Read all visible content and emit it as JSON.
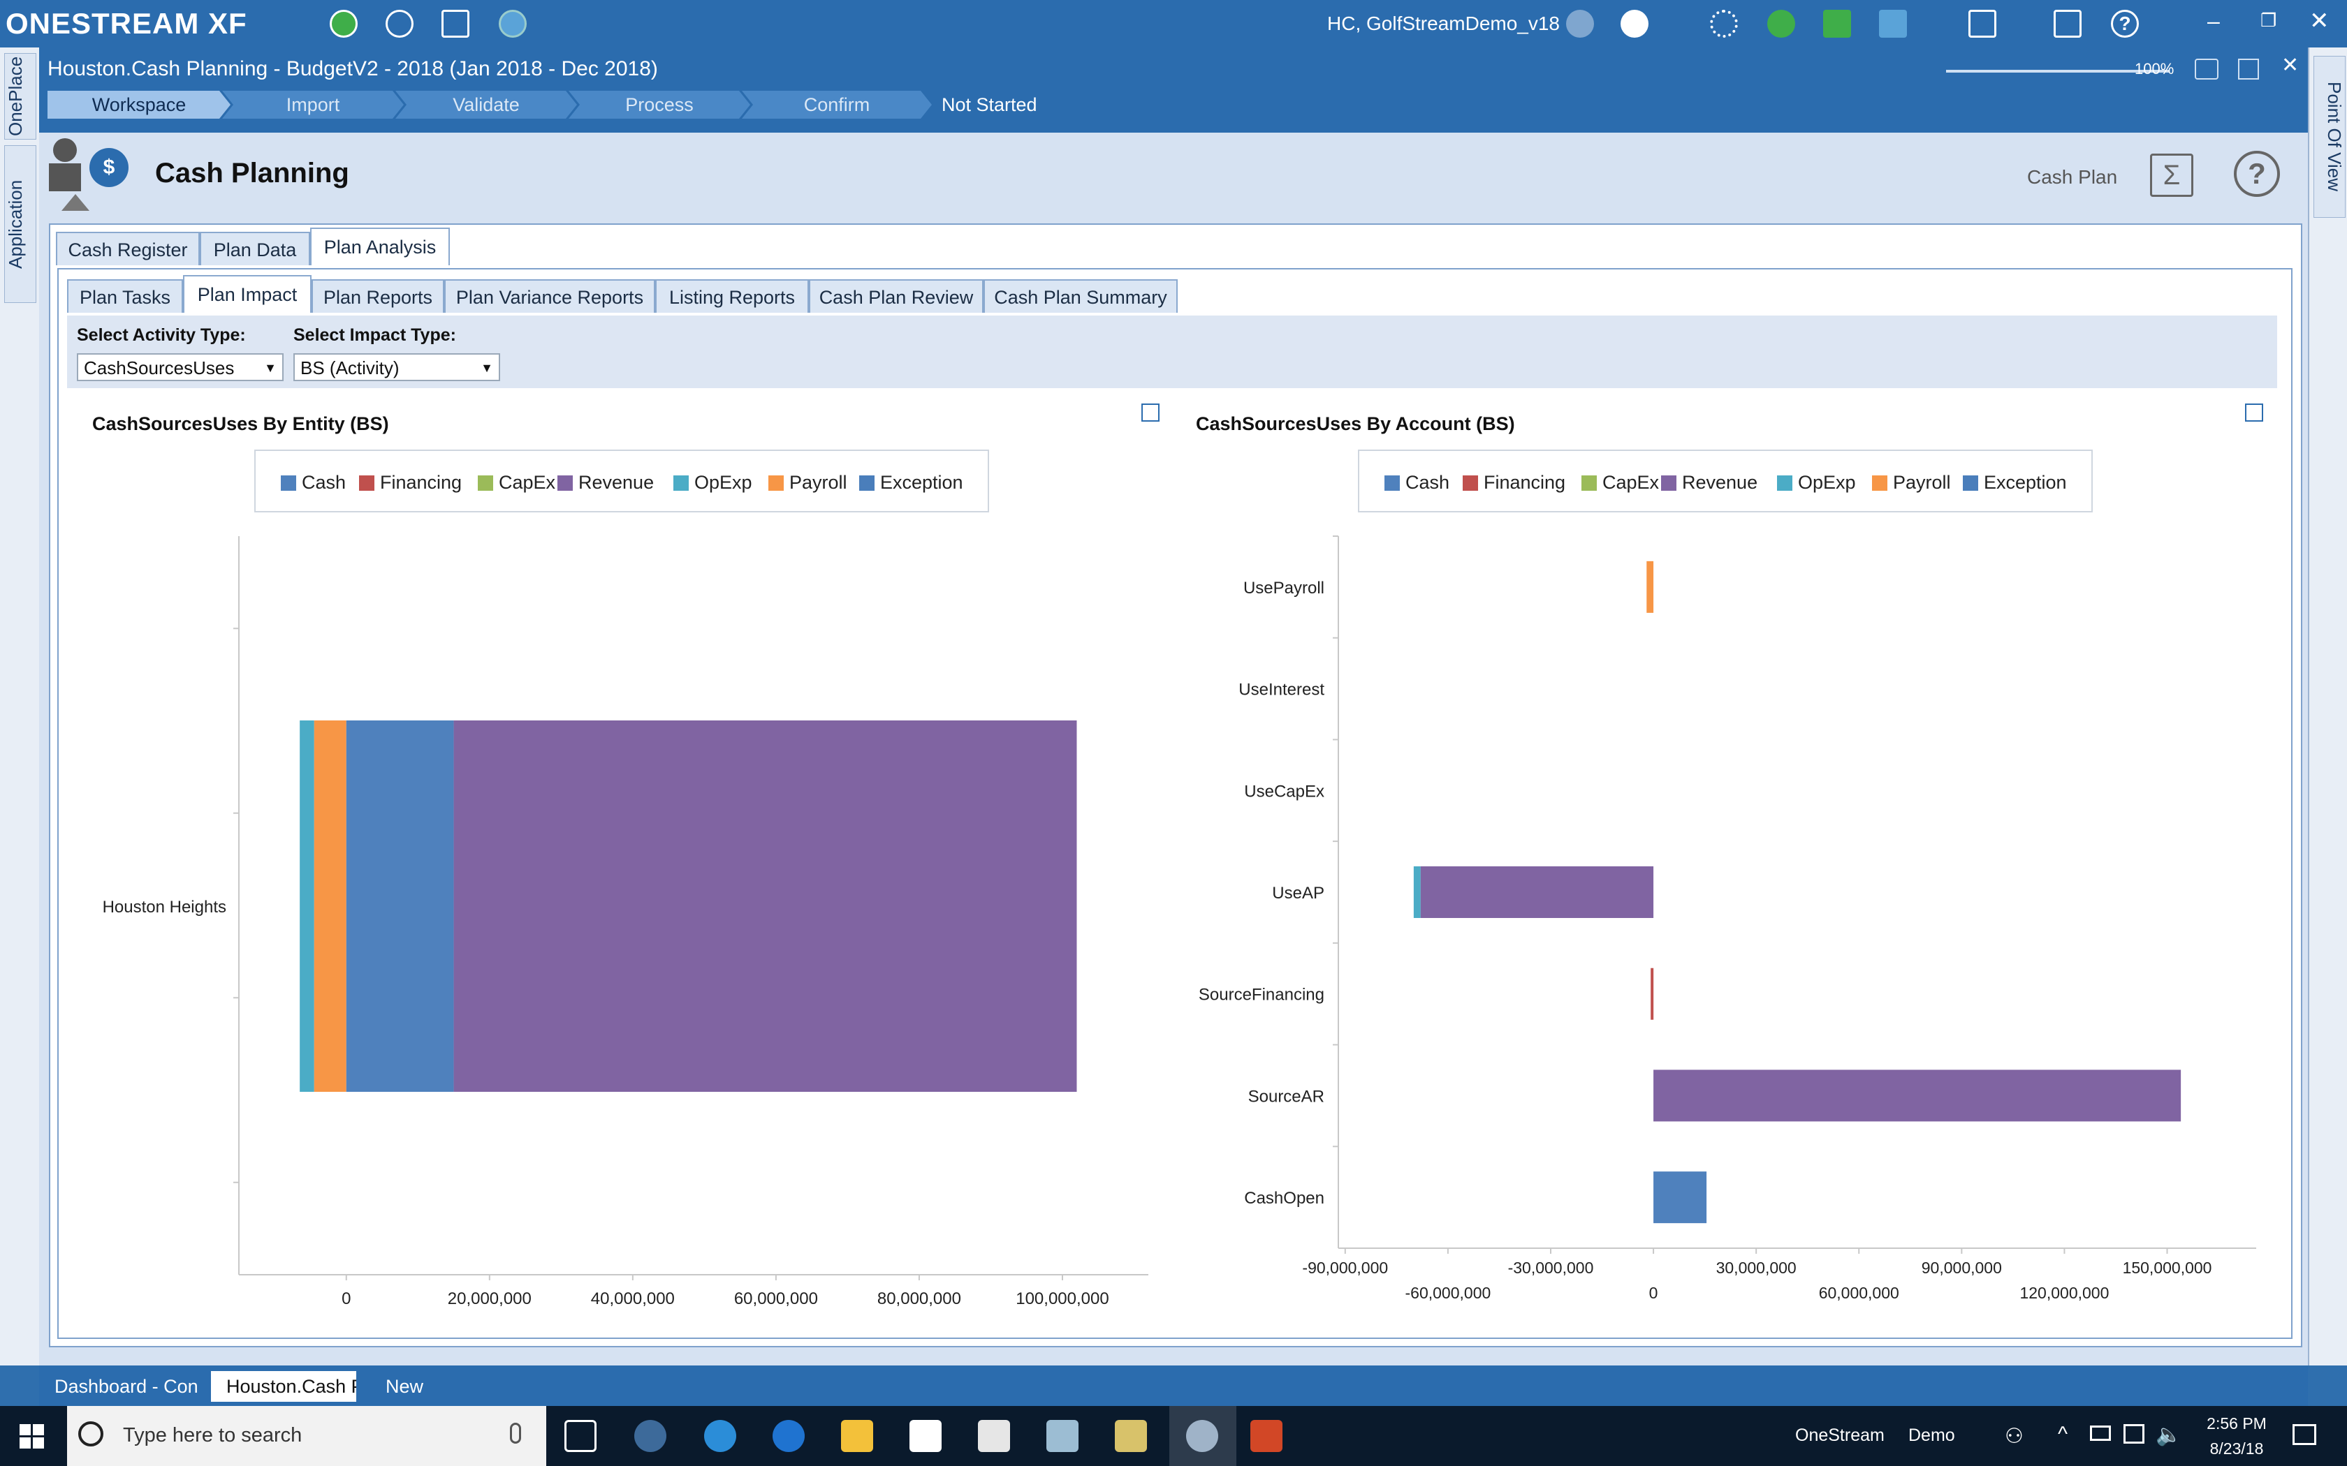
{
  "app": {
    "logo_text": "ONESTREAM XF",
    "user_app": "HC, GolfStreamDemo_v18"
  },
  "side_tabs": {
    "left": [
      "OnePlace",
      "Application"
    ],
    "right": "Point Of View"
  },
  "workspace": {
    "title": "Houston.Cash Planning  -  BudgetV2  -  2018 (Jan 2018 - Dec 2018)",
    "zoom": "100%",
    "steps": [
      "Workspace",
      "Import",
      "Validate",
      "Process",
      "Confirm"
    ],
    "status": "Not Started"
  },
  "dashboard": {
    "title": "Cash Planning",
    "cash_plan_label": "Cash Plan"
  },
  "tabs_level1": [
    "Cash Register",
    "Plan Data",
    "Plan Analysis"
  ],
  "tabs_level2": [
    "Plan Tasks",
    "Plan Impact",
    "Plan Reports",
    "Plan Variance Reports",
    "Listing Reports",
    "Cash Plan Review",
    "Cash Plan Summary"
  ],
  "selectors": {
    "activity_label": "Select Activity Type:",
    "activity_value": "CashSourcesUses",
    "impact_label": "Select Impact Type:",
    "impact_value": "BS (Activity)"
  },
  "legend_labels": [
    "Cash",
    "Financing",
    "CapEx",
    "Revenue",
    "OpExp",
    "Payroll",
    "Exception"
  ],
  "colors": {
    "Cash": "#4f81bd",
    "Financing": "#c0504d",
    "CapEx": "#9bbb59",
    "Revenue": "#8064a2",
    "OpExp": "#4bacc6",
    "Payroll": "#f79646",
    "Exception": "#4a7ebb"
  },
  "chart_data": [
    {
      "type": "bar",
      "orientation": "horizontal",
      "stacked": true,
      "title": "CashSourcesUses By Entity  (BS)",
      "categories": [
        "Houston Heights"
      ],
      "series": [
        {
          "name": "Payroll",
          "values": [
            -4500000
          ]
        },
        {
          "name": "OpExp",
          "values": [
            -2000000
          ]
        },
        {
          "name": "Cash",
          "values": [
            15000000
          ]
        },
        {
          "name": "Revenue",
          "values": [
            87000000
          ]
        }
      ],
      "x_ticks": [
        "0",
        "20,000,000",
        "40,000,000",
        "60,000,000",
        "80,000,000",
        "100,000,000"
      ],
      "xlim": [
        -15000000,
        112000000
      ],
      "legend_position": "top"
    },
    {
      "type": "bar",
      "orientation": "horizontal",
      "stacked": true,
      "title": "CashSourcesUses By Account  (BS)",
      "categories": [
        "UsePayroll",
        "UseInterest",
        "UseCapEx",
        "UseAP",
        "SourceFinancing",
        "SourceAR",
        "CashOpen"
      ],
      "series": [
        {
          "name": "Payroll",
          "values": [
            -2000000,
            0,
            0,
            0,
            0,
            0,
            0
          ]
        },
        {
          "name": "Financing",
          "values": [
            0,
            0,
            0,
            0,
            -800000,
            0,
            0
          ]
        },
        {
          "name": "Revenue",
          "values": [
            0,
            0,
            0,
            -68000000,
            0,
            154000000,
            0
          ]
        },
        {
          "name": "OpExp",
          "values": [
            0,
            0,
            0,
            -2000000,
            0,
            0,
            0
          ]
        },
        {
          "name": "Cash",
          "values": [
            0,
            0,
            0,
            0,
            0,
            0,
            15500000
          ]
        }
      ],
      "x_ticks_upper": [
        "-90,000,000",
        "-30,000,000",
        "30,000,000",
        "90,000,000",
        "150,000,000"
      ],
      "x_ticks_lower": [
        "-60,000,000",
        "0",
        "60,000,000",
        "120,000,000"
      ],
      "xlim": [
        -92000000,
        176000000
      ],
      "legend_position": "top"
    }
  ],
  "bottom_tabs": [
    "Dashboard - Con",
    "Houston.Cash Pla",
    "New"
  ],
  "taskbar": {
    "search_placeholder": "Type here to search",
    "item1": "OneStream",
    "item2": "Demo",
    "time": "2:56 PM",
    "date": "8/23/18"
  }
}
